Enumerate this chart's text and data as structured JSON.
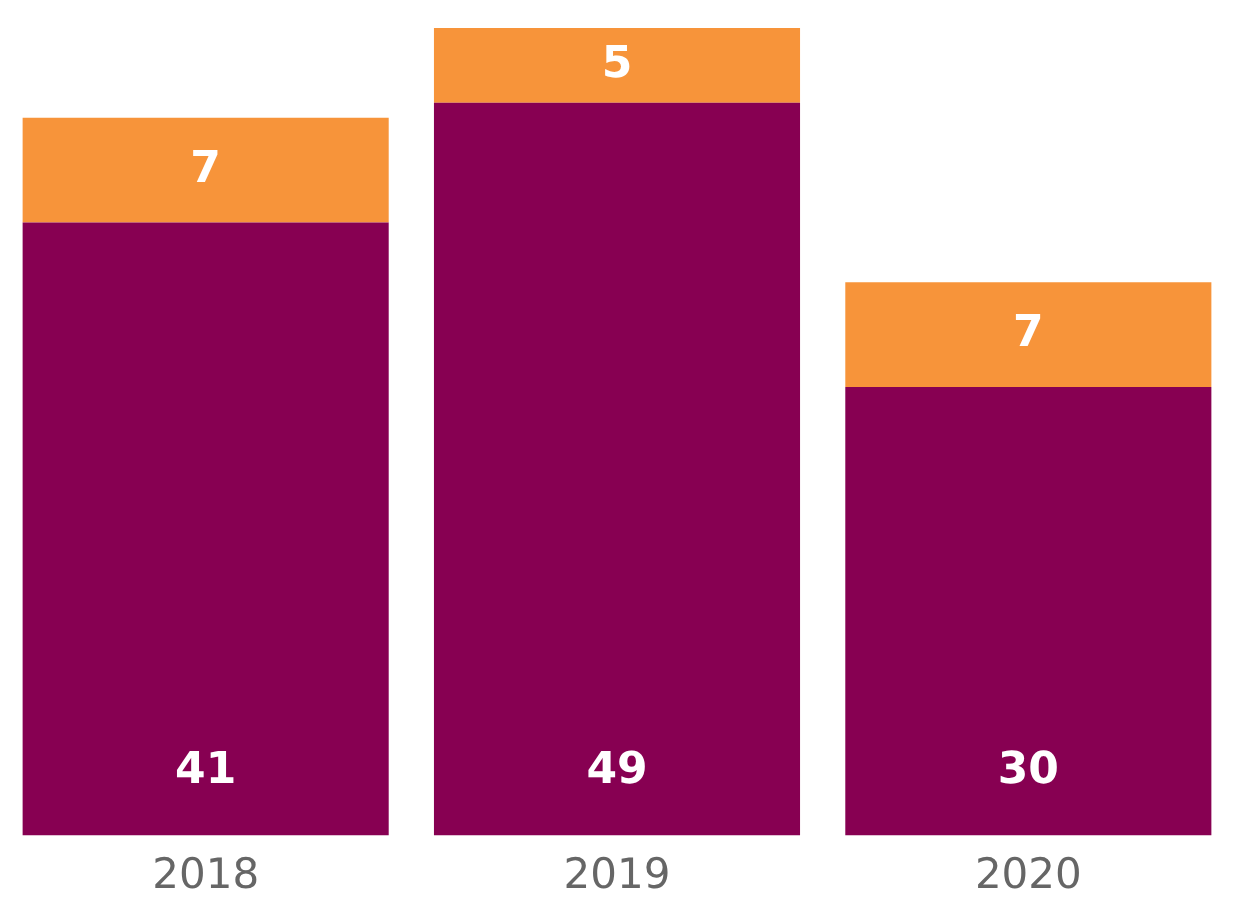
{
  "chart_data": {
    "type": "bar",
    "stacked": true,
    "data_labels": true,
    "legend": false,
    "grid": false,
    "tick_labels": "x",
    "categories": [
      "2018",
      "2019",
      "2020"
    ],
    "series": [
      {
        "color": "#870052",
        "values": [
          41,
          49,
          30
        ]
      },
      {
        "color": "#f7943a",
        "values": [
          7,
          5,
          7
        ]
      }
    ]
  }
}
